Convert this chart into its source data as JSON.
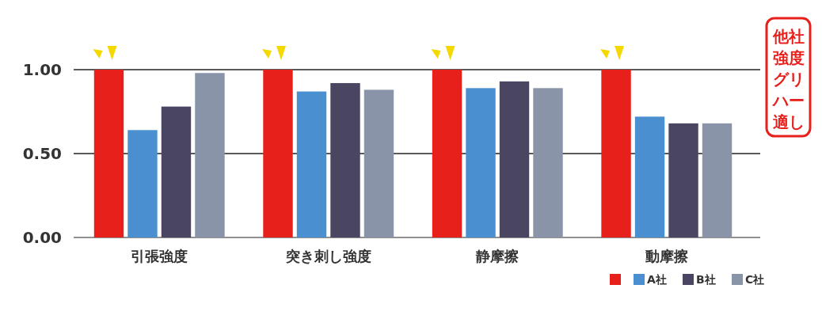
{
  "chart_data": {
    "type": "bar",
    "categories": [
      "引張強度",
      "突き刺し強度",
      "静摩擦",
      "動摩擦"
    ],
    "series": [
      {
        "color": "#e8201c",
        "values": [
          1.0,
          1.0,
          1.0,
          1.0
        ]
      },
      {
        "name": "A社",
        "color": "#4a90d0",
        "values": [
          0.64,
          0.87,
          0.89,
          0.72
        ]
      },
      {
        "name": "B社",
        "color": "#4a4560",
        "values": [
          0.78,
          0.92,
          0.93,
          0.68
        ]
      },
      {
        "name": "C社",
        "color": "#8a94a8",
        "values": [
          0.98,
          0.88,
          0.89,
          0.68
        ]
      }
    ],
    "ylim": [
      0,
      1.0
    ],
    "yticks": [
      {
        "value": 0,
        "label": "0.00"
      },
      {
        "value": 0.5,
        "label": "0.50"
      },
      {
        "value": 1,
        "label": "1.00"
      }
    ],
    "grid": "y",
    "legend": "bottom right",
    "annotations": [
      "他社",
      "強度",
      "グリ",
      "ハー",
      "適し"
    ]
  }
}
